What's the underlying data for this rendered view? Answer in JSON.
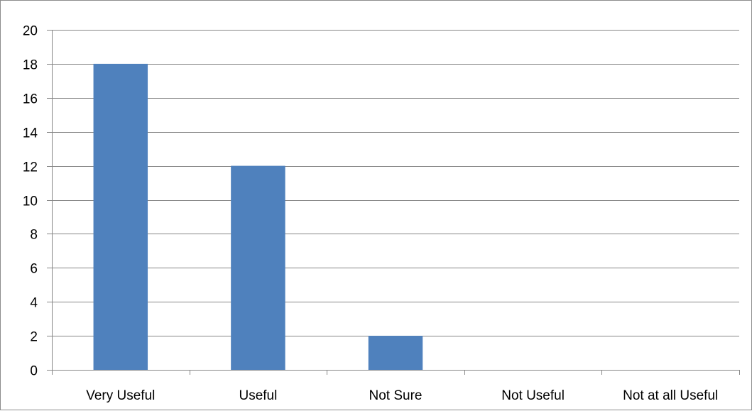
{
  "chart_data": {
    "type": "bar",
    "title": "",
    "xlabel": "",
    "ylabel": "",
    "categories": [
      "Very Useful",
      "Useful",
      "Not Sure",
      "Not Useful",
      "Not at all Useful"
    ],
    "values": [
      18,
      12,
      2,
      0,
      0
    ],
    "ylim": [
      0,
      20
    ],
    "yticks": [
      "0",
      "2",
      "4",
      "6",
      "8",
      "10",
      "12",
      "14",
      "16",
      "18",
      "20"
    ],
    "grid": true,
    "legend": "none",
    "bar_color": "#4f81bd",
    "grid_color": "#868686"
  }
}
